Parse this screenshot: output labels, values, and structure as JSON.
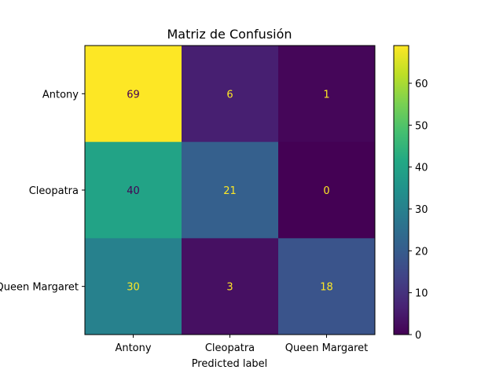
{
  "chart_data": {
    "type": "heatmap",
    "title": "Matriz de Confusión",
    "xlabel": "Predicted label",
    "ylabel": "",
    "x_categories": [
      "Antony",
      "Cleopatra",
      "Queen Margaret"
    ],
    "y_categories": [
      "Antony",
      "Cleopatra",
      "Queen Margaret"
    ],
    "values": [
      [
        69,
        6,
        1
      ],
      [
        40,
        21,
        0
      ],
      [
        30,
        3,
        18
      ]
    ],
    "colormap": "viridis",
    "colorbar": {
      "min": 0,
      "max": 69,
      "ticks": [
        0,
        10,
        20,
        30,
        40,
        50,
        60
      ]
    },
    "text_colors": {
      "dark": "#440154",
      "light": "#fde725"
    },
    "grid": false
  }
}
